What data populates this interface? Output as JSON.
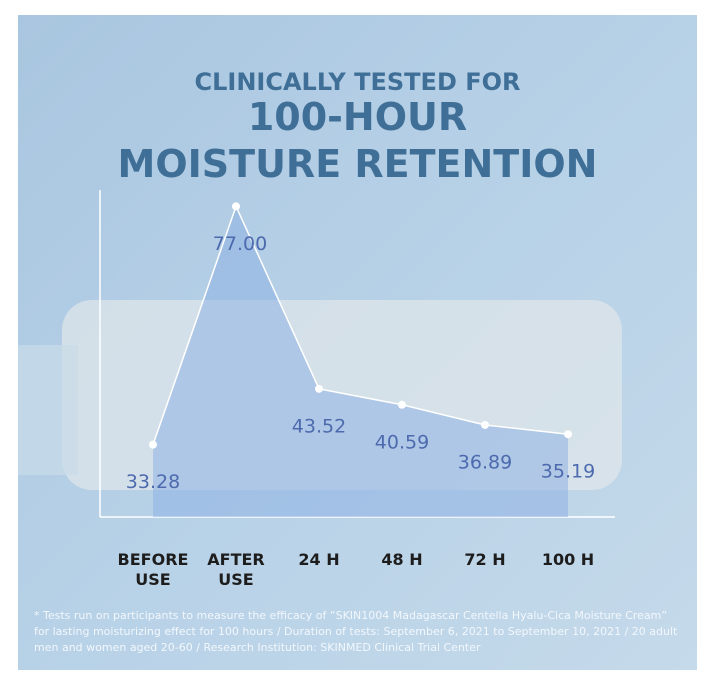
{
  "chart_data": {
    "type": "line",
    "title_lines": [
      "CLINICALLY TESTED FOR",
      "100-HOUR",
      "MOISTURE RETENTION"
    ],
    "categories": [
      "BEFORE USE",
      "AFTER USE",
      "24 H",
      "48 H",
      "72 H",
      "100 H"
    ],
    "values": [
      33.28,
      77,
      43.52,
      40.59,
      36.89,
      35.19
    ],
    "value_labels": [
      "33.28",
      "77.00",
      "43.52",
      "40.59",
      "36.89",
      "35.19"
    ],
    "color": "#ffffff",
    "area_color": "#8fb3e3",
    "ylim": [
      20,
      80
    ]
  },
  "footnote": "* Tests run on participants to measure the efficacy of “SKIN1004 Madagascar Centella Hyalu-Cica Moisture Cream” for lasting moisturizing effect for 100 hours / Duration of tests: September 6, 2021 to September 10, 2021 / 20 adult men and women aged 20-60 / Research Institution: SKINMED Clinical Trial Center"
}
